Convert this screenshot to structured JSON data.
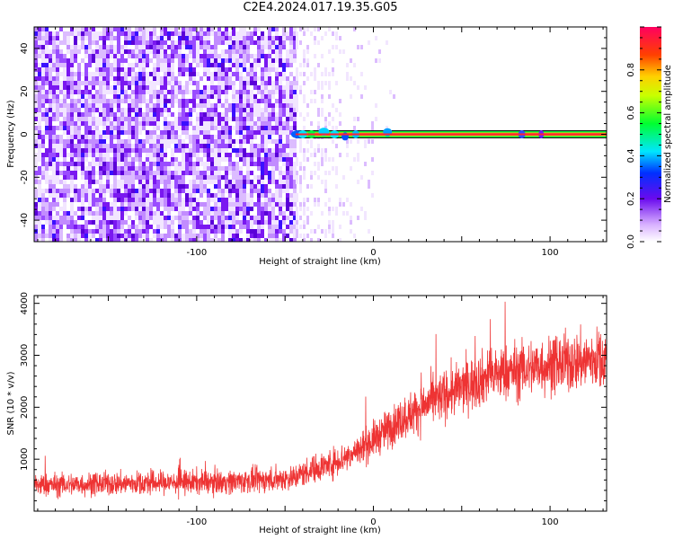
{
  "title": "C2E4.2024.017.19.35.G05",
  "chart_data": [
    {
      "type": "heatmap",
      "xlabel": "Height of straight line (km)",
      "ylabel": "Frequency (Hz)",
      "xlim": [
        -192,
        132
      ],
      "ylim": [
        -50,
        50
      ],
      "x_ticks": [
        -100,
        0,
        100
      ],
      "y_ticks": [
        -40,
        -20,
        0,
        20,
        40
      ],
      "colorbar": {
        "label": "Normalized spectral amplitude",
        "range": [
          0,
          1
        ],
        "ticks": [
          0.0,
          0.2,
          0.4,
          0.6,
          0.8
        ]
      },
      "features": [
        {
          "description": "broadband noise",
          "x_range": [
            -192,
            -44
          ],
          "y_range": [
            -50,
            50
          ],
          "amplitude": 0.3
        },
        {
          "description": "sparse noise",
          "x_range": [
            -44,
            15
          ],
          "y_range": [
            -50,
            50
          ],
          "amplitude": 0.05
        },
        {
          "description": "signal line",
          "x_range": [
            -44,
            132
          ],
          "frequency": 0,
          "amplitude": 1.0
        }
      ]
    },
    {
      "type": "line",
      "xlabel": "Height of straight line (km)",
      "ylabel": "SNR (10 * v/v)",
      "xlim": [
        -192,
        132
      ],
      "ylim": [
        0,
        4150
      ],
      "x_ticks": [
        -100,
        0,
        100
      ],
      "y_ticks": [
        1000,
        2000,
        3000,
        4000
      ],
      "color": "#ee3333",
      "series": [
        {
          "x": [
            -192,
            -160,
            -120,
            -80,
            -60,
            -45,
            -35,
            -25,
            -15,
            -5,
            5,
            15,
            25,
            35,
            45,
            55,
            65,
            80,
            95,
            110,
            120,
            132
          ],
          "y": [
            500,
            520,
            550,
            570,
            600,
            650,
            800,
            900,
            1050,
            1250,
            1500,
            1750,
            1950,
            2150,
            2300,
            2450,
            2600,
            2700,
            2800,
            2850,
            2900,
            2950
          ]
        }
      ]
    }
  ]
}
